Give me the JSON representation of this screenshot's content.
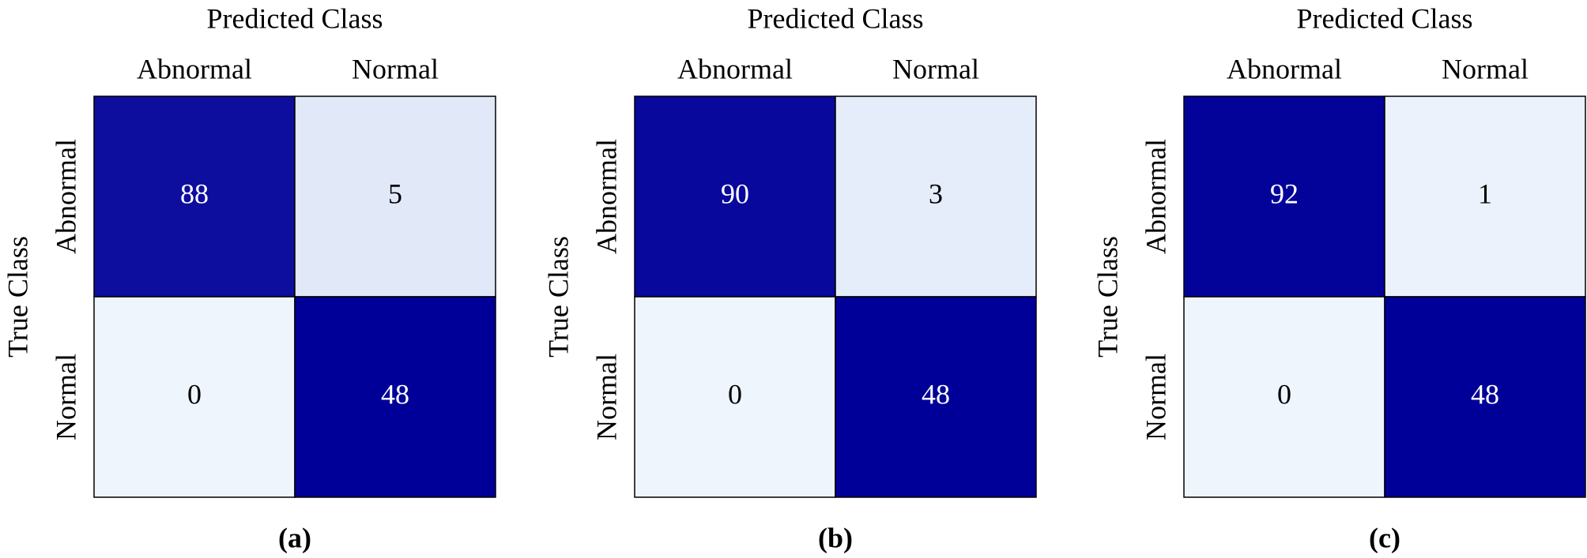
{
  "chart_data": [
    {
      "type": "heatmap",
      "title": "Predicted Class",
      "y_label": "True Class",
      "caption": "(a)",
      "x_categories": [
        "Abnormal",
        "Normal"
      ],
      "y_categories": [
        "Abnormal",
        "Normal"
      ],
      "values": [
        [
          88,
          5
        ],
        [
          0,
          48
        ]
      ],
      "colors": [
        "#eef5fd",
        "#000099"
      ]
    },
    {
      "type": "heatmap",
      "title": "Predicted Class",
      "y_label": "True Class",
      "caption": "(b)",
      "x_categories": [
        "Abnormal",
        "Normal"
      ],
      "y_categories": [
        "Abnormal",
        "Normal"
      ],
      "values": [
        [
          90,
          3
        ],
        [
          0,
          48
        ]
      ],
      "colors": [
        "#eef5fd",
        "#000099"
      ]
    },
    {
      "type": "heatmap",
      "title": "Predicted Class",
      "y_label": "True Class",
      "caption": "(c)",
      "x_categories": [
        "Abnormal",
        "Normal"
      ],
      "y_categories": [
        "Abnormal",
        "Normal"
      ],
      "values": [
        [
          92,
          1
        ],
        [
          0,
          48
        ]
      ],
      "colors": [
        "#eef5fd",
        "#000099"
      ]
    }
  ]
}
